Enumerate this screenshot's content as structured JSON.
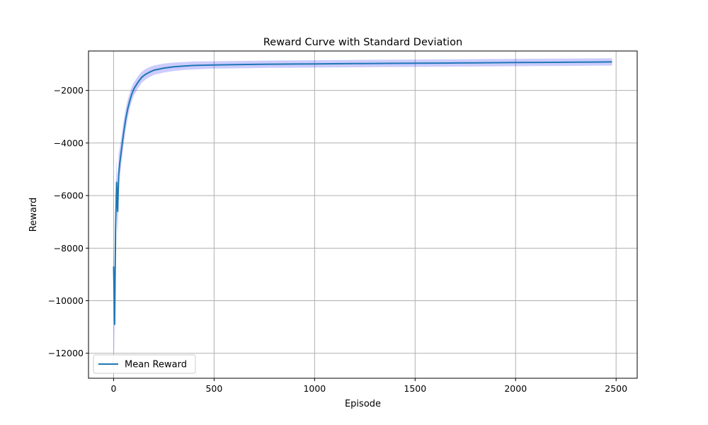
{
  "chart_data": {
    "type": "line",
    "title": "Reward Curve with Standard Deviation",
    "xlabel": "Episode",
    "ylabel": "Reward",
    "xlim": [
      -125,
      2605
    ],
    "ylim": [
      -12950,
      -500
    ],
    "xticks": [
      0,
      500,
      1000,
      1500,
      2000,
      2500
    ],
    "xtick_labels": [
      "0",
      "500",
      "1000",
      "1500",
      "2000",
      "2500"
    ],
    "yticks": [
      -12000,
      -10000,
      -8000,
      -6000,
      -4000,
      -2000
    ],
    "ytick_labels": [
      "−12000",
      "−10000",
      "−8000",
      "−6000",
      "−4000",
      "−2000"
    ],
    "grid": true,
    "legend": {
      "position": "lower-left",
      "entries": [
        "Mean Reward"
      ]
    },
    "colors": {
      "mean": "#1f77b4",
      "std_band": "#0000ff"
    },
    "series": [
      {
        "name": "Mean Reward",
        "band": "std",
        "x": [
          0,
          5,
          10,
          15,
          20,
          25,
          30,
          40,
          50,
          60,
          70,
          80,
          90,
          100,
          120,
          140,
          160,
          180,
          200,
          250,
          300,
          350,
          400,
          500,
          600,
          700,
          800,
          900,
          1000,
          1100,
          1200,
          1300,
          1400,
          1500,
          1600,
          1700,
          1800,
          1900,
          2000,
          2100,
          2200,
          2300,
          2400,
          2480
        ],
        "y": [
          -8700,
          -10900,
          -7200,
          -5500,
          -6600,
          -5200,
          -4800,
          -4200,
          -3600,
          -3100,
          -2700,
          -2400,
          -2150,
          -1950,
          -1700,
          -1500,
          -1380,
          -1300,
          -1230,
          -1150,
          -1100,
          -1070,
          -1050,
          -1030,
          -1020,
          -1010,
          -1000,
          -995,
          -990,
          -985,
          -980,
          -975,
          -970,
          -965,
          -960,
          -955,
          -950,
          -945,
          -940,
          -935,
          -930,
          -925,
          -920,
          -915
        ],
        "std": [
          900,
          1200,
          1200,
          900,
          900,
          800,
          600,
          500,
          450,
          400,
          350,
          300,
          280,
          250,
          230,
          210,
          200,
          190,
          180,
          170,
          160,
          150,
          150,
          140,
          140,
          140,
          140,
          140,
          140,
          140,
          140,
          140,
          140,
          140,
          140,
          140,
          140,
          140,
          140,
          140,
          140,
          140,
          140,
          140
        ]
      }
    ]
  }
}
